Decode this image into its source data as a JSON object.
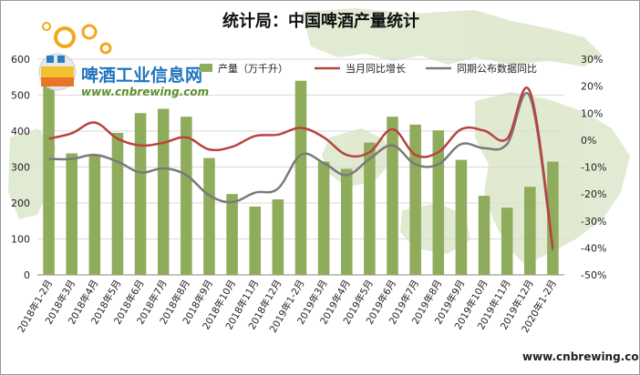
{
  "chart_data": {
    "type": "bar",
    "title": "统计局：中国啤酒产量统计",
    "categories": [
      "2018年1-2月",
      "2018年3月",
      "2018年4月",
      "2018年5月",
      "2018年6月",
      "2018年7月",
      "2018年8月",
      "2018年9月",
      "2018年10月",
      "2018年11月",
      "2018年12月",
      "2019年1-2月",
      "2019年3月",
      "2019年4月",
      "2019年5月",
      "2019年6月",
      "2019年7月",
      "2019年8月",
      "2019年9月",
      "2019年10月",
      "2019年11月",
      "2019年12月",
      "2020年1-2月"
    ],
    "series": [
      {
        "name": "产量（万千升）",
        "type": "bar",
        "axis": "left",
        "color": "#8fac5c",
        "values": [
          565,
          338,
          335,
          395,
          450,
          462,
          440,
          325,
          225,
          190,
          210,
          540,
          315,
          295,
          368,
          440,
          418,
          402,
          320,
          220,
          187,
          245,
          315
        ]
      },
      {
        "name": "当月同比增长",
        "type": "line",
        "axis": "right",
        "color": "#b8433f",
        "values": [
          0.5,
          2.5,
          6.5,
          0.5,
          -2.0,
          -1.0,
          1.0,
          -3.5,
          -2.5,
          1.5,
          2.0,
          4.5,
          1.0,
          -5.5,
          -4.5,
          4.0,
          -5.5,
          -4.5,
          4.0,
          3.5,
          0.5,
          18.0,
          -40.0
        ]
      },
      {
        "name": "同期公布数据同比",
        "type": "line",
        "axis": "right",
        "color": "#7a7a7a",
        "values": [
          -7.0,
          -7.0,
          -5.5,
          -8.0,
          -12.0,
          -10.5,
          -13.0,
          -20.5,
          -23.0,
          -19.5,
          -18.0,
          -5.5,
          -8.5,
          -13.0,
          -7.0,
          -2.0,
          -9.0,
          -9.0,
          -1.5,
          -3.0,
          -1.5,
          16.0,
          -41.0
        ]
      }
    ],
    "y_left": {
      "min": 0,
      "max": 600,
      "ticks": [
        0,
        100,
        200,
        300,
        400,
        500,
        600
      ]
    },
    "y_right": {
      "min": -50,
      "max": 30,
      "ticks": [
        "-50%",
        "-40%",
        "-30%",
        "-20%",
        "-10%",
        "0%",
        "10%",
        "20%",
        "30%"
      ]
    },
    "grid": true,
    "legend_position": "top"
  },
  "logo": {
    "cn": "啤酒工业信息网",
    "en": "www.cnbrewing.com"
  },
  "source_text": "www.cnbrewing.com",
  "colors": {
    "bar": "#8fac5c",
    "line_current": "#b8433f",
    "line_published": "#7a7a7a",
    "map": "#c9d9ad"
  }
}
